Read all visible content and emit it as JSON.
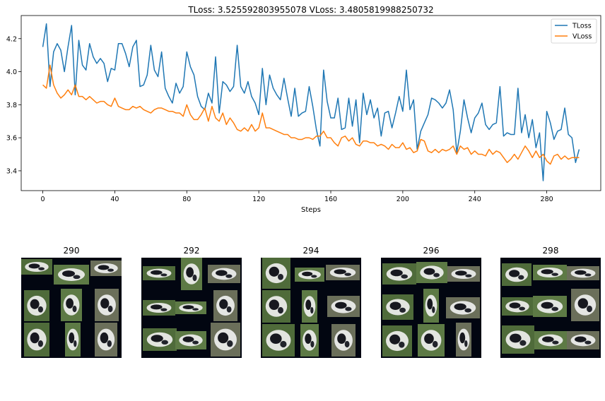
{
  "chart_data": {
    "type": "line",
    "title": "TLoss: 3.525592803955078   VLoss: 3.4805819988250732",
    "xlabel": "Steps",
    "ylabel": "",
    "xlim": [
      -12,
      310
    ],
    "ylim": [
      3.28,
      4.34
    ],
    "xticks": [
      0,
      40,
      80,
      120,
      160,
      200,
      240,
      280
    ],
    "yticks": [
      3.4,
      3.6,
      3.8,
      4.0,
      4.2
    ],
    "ytick_labels": [
      "3.4",
      "3.6",
      "3.8",
      "4.0",
      "4.2"
    ],
    "grid": false,
    "legend": "top-right",
    "series": [
      {
        "name": "TLoss",
        "color": "#1f77b4",
        "x": [
          0,
          2,
          4,
          6,
          8,
          10,
          12,
          14,
          16,
          18,
          20,
          22,
          24,
          26,
          28,
          30,
          32,
          34,
          36,
          38,
          40,
          42,
          44,
          46,
          48,
          50,
          52,
          54,
          56,
          58,
          60,
          62,
          64,
          66,
          68,
          70,
          72,
          74,
          76,
          78,
          80,
          82,
          84,
          86,
          88,
          90,
          92,
          94,
          96,
          98,
          100,
          102,
          104,
          106,
          108,
          110,
          112,
          114,
          116,
          118,
          120,
          122,
          124,
          126,
          128,
          130,
          132,
          134,
          136,
          138,
          140,
          142,
          144,
          146,
          148,
          150,
          152,
          154,
          156,
          158,
          160,
          162,
          164,
          166,
          168,
          170,
          172,
          174,
          176,
          178,
          180,
          182,
          184,
          186,
          188,
          190,
          192,
          194,
          196,
          198,
          200,
          202,
          204,
          206,
          208,
          210,
          212,
          214,
          216,
          218,
          220,
          222,
          224,
          226,
          228,
          230,
          232,
          234,
          236,
          238,
          240,
          242,
          244,
          246,
          248,
          250,
          252,
          254,
          256,
          258,
          260,
          262,
          264,
          266,
          268,
          270,
          272,
          274,
          276,
          278,
          280,
          282,
          284,
          286,
          288,
          290,
          292,
          294,
          296,
          298
        ],
        "values": [
          4.15,
          4.29,
          3.91,
          4.12,
          4.17,
          4.13,
          4.0,
          4.15,
          4.28,
          3.86,
          4.19,
          4.04,
          4.01,
          4.17,
          4.09,
          4.05,
          4.08,
          4.05,
          3.94,
          4.02,
          4.01,
          4.17,
          4.17,
          4.11,
          4.03,
          4.15,
          4.19,
          3.91,
          3.92,
          3.98,
          4.16,
          4.01,
          3.97,
          4.12,
          3.9,
          3.85,
          3.81,
          3.93,
          3.87,
          3.91,
          4.12,
          4.03,
          3.98,
          3.85,
          3.79,
          3.77,
          3.87,
          3.81,
          4.09,
          3.75,
          3.94,
          3.92,
          3.88,
          3.91,
          4.16,
          3.91,
          3.87,
          3.94,
          3.85,
          3.81,
          3.74,
          4.02,
          3.8,
          3.98,
          3.9,
          3.86,
          3.83,
          3.96,
          3.84,
          3.73,
          3.9,
          3.73,
          3.75,
          3.76,
          3.91,
          3.79,
          3.65,
          3.55,
          4.01,
          3.82,
          3.72,
          3.72,
          3.84,
          3.65,
          3.66,
          3.84,
          3.67,
          3.83,
          3.57,
          3.87,
          3.74,
          3.83,
          3.72,
          3.78,
          3.61,
          3.75,
          3.76,
          3.66,
          3.75,
          3.85,
          3.76,
          4.01,
          3.77,
          3.83,
          3.53,
          3.64,
          3.69,
          3.74,
          3.84,
          3.83,
          3.81,
          3.78,
          3.81,
          3.89,
          3.77,
          3.51,
          3.64,
          3.83,
          3.72,
          3.63,
          3.72,
          3.75,
          3.81,
          3.68,
          3.65,
          3.68,
          3.69,
          3.91,
          3.61,
          3.63,
          3.62,
          3.62,
          3.9,
          3.63,
          3.74,
          3.6,
          3.71,
          3.54,
          3.63,
          3.34,
          3.76,
          3.69,
          3.59,
          3.64,
          3.65,
          3.78,
          3.62,
          3.6,
          3.45,
          3.53
        ]
      },
      {
        "name": "VLoss",
        "color": "#ff7f0e",
        "x": [
          0,
          2,
          4,
          6,
          8,
          10,
          12,
          14,
          16,
          18,
          20,
          22,
          24,
          26,
          28,
          30,
          32,
          34,
          36,
          38,
          40,
          42,
          44,
          46,
          48,
          50,
          52,
          54,
          56,
          58,
          60,
          62,
          64,
          66,
          68,
          70,
          72,
          74,
          76,
          78,
          80,
          82,
          84,
          86,
          88,
          90,
          92,
          94,
          96,
          98,
          100,
          102,
          104,
          106,
          108,
          110,
          112,
          114,
          116,
          118,
          120,
          122,
          124,
          126,
          128,
          130,
          132,
          134,
          136,
          138,
          140,
          142,
          144,
          146,
          148,
          150,
          152,
          154,
          156,
          158,
          160,
          162,
          164,
          166,
          168,
          170,
          172,
          174,
          176,
          178,
          180,
          182,
          184,
          186,
          188,
          190,
          192,
          194,
          196,
          198,
          200,
          202,
          204,
          206,
          208,
          210,
          212,
          214,
          216,
          218,
          220,
          222,
          224,
          226,
          228,
          230,
          232,
          234,
          236,
          238,
          240,
          242,
          244,
          246,
          248,
          250,
          252,
          254,
          256,
          258,
          260,
          262,
          264,
          266,
          268,
          270,
          272,
          274,
          276,
          278,
          280,
          282,
          284,
          286,
          288,
          290,
          292,
          294,
          296,
          298
        ],
        "values": [
          3.92,
          3.9,
          4.04,
          3.92,
          3.87,
          3.84,
          3.86,
          3.89,
          3.86,
          3.92,
          3.85,
          3.85,
          3.83,
          3.85,
          3.83,
          3.81,
          3.82,
          3.82,
          3.8,
          3.79,
          3.84,
          3.79,
          3.78,
          3.77,
          3.77,
          3.79,
          3.78,
          3.79,
          3.77,
          3.76,
          3.75,
          3.77,
          3.78,
          3.78,
          3.77,
          3.76,
          3.76,
          3.75,
          3.75,
          3.73,
          3.8,
          3.74,
          3.71,
          3.71,
          3.74,
          3.78,
          3.7,
          3.79,
          3.72,
          3.7,
          3.75,
          3.68,
          3.72,
          3.69,
          3.65,
          3.64,
          3.66,
          3.64,
          3.68,
          3.64,
          3.66,
          3.75,
          3.66,
          3.66,
          3.65,
          3.64,
          3.63,
          3.62,
          3.62,
          3.6,
          3.6,
          3.59,
          3.59,
          3.6,
          3.6,
          3.59,
          3.61,
          3.61,
          3.64,
          3.6,
          3.6,
          3.57,
          3.55,
          3.6,
          3.61,
          3.58,
          3.6,
          3.56,
          3.55,
          3.58,
          3.58,
          3.57,
          3.57,
          3.55,
          3.56,
          3.55,
          3.53,
          3.56,
          3.54,
          3.54,
          3.57,
          3.53,
          3.54,
          3.51,
          3.52,
          3.59,
          3.58,
          3.52,
          3.51,
          3.53,
          3.51,
          3.53,
          3.52,
          3.53,
          3.55,
          3.5,
          3.55,
          3.53,
          3.54,
          3.5,
          3.52,
          3.5,
          3.5,
          3.49,
          3.53,
          3.5,
          3.52,
          3.51,
          3.48,
          3.45,
          3.47,
          3.5,
          3.47,
          3.51,
          3.55,
          3.52,
          3.48,
          3.52,
          3.48,
          3.5,
          3.46,
          3.44,
          3.49,
          3.5,
          3.47,
          3.49,
          3.47,
          3.48,
          3.48,
          3.48
        ]
      }
    ]
  },
  "thumbnails": [
    {
      "label": "290"
    },
    {
      "label": "292"
    },
    {
      "label": "294"
    },
    {
      "label": "296"
    },
    {
      "label": "298"
    }
  ]
}
